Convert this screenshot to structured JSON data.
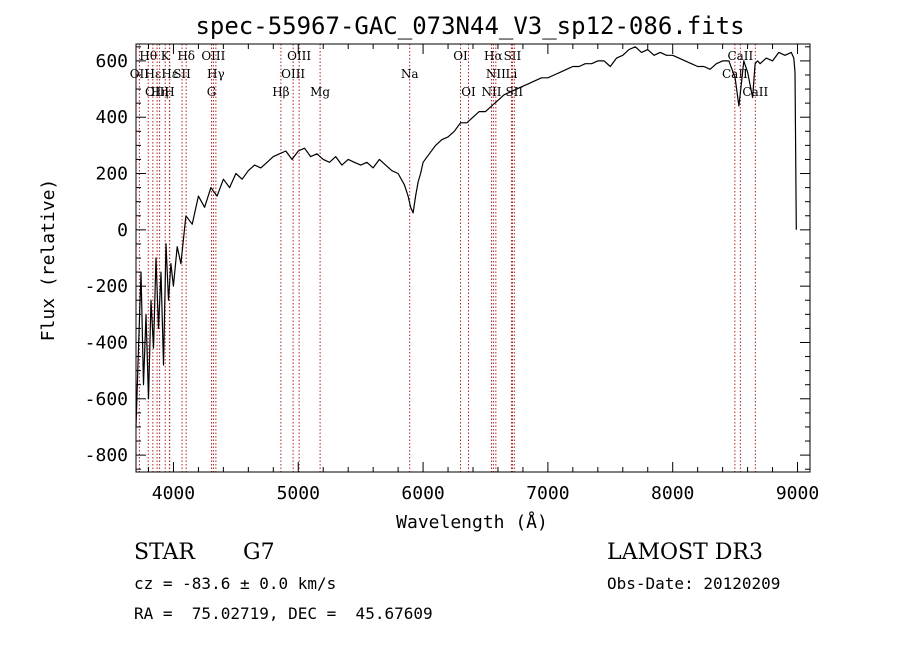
{
  "chart_data": {
    "type": "line",
    "title": "spec-55967-GAC_073N44_V3_sp12-086.fits",
    "xlabel": "Wavelength (Å)",
    "ylabel": "Flux (relative)",
    "xlim": [
      3700,
      9100
    ],
    "ylim": [
      -860,
      660
    ],
    "xticks": [
      4000,
      5000,
      6000,
      7000,
      8000,
      9000
    ],
    "yticks": [
      -800,
      -600,
      -400,
      -200,
      0,
      200,
      400,
      600
    ],
    "series": [
      {
        "name": "flux",
        "x": [
          3700,
          3720,
          3740,
          3760,
          3780,
          3800,
          3820,
          3840,
          3860,
          3880,
          3900,
          3920,
          3940,
          3960,
          3980,
          4000,
          4030,
          4060,
          4100,
          4150,
          4200,
          4250,
          4300,
          4350,
          4400,
          4450,
          4500,
          4550,
          4600,
          4650,
          4700,
          4750,
          4800,
          4850,
          4900,
          4950,
          5000,
          5050,
          5100,
          5150,
          5200,
          5250,
          5300,
          5350,
          5400,
          5450,
          5500,
          5550,
          5600,
          5650,
          5700,
          5750,
          5800,
          5850,
          5880,
          5900,
          5920,
          5940,
          5960,
          5980,
          6000,
          6050,
          6100,
          6150,
          6200,
          6250,
          6300,
          6350,
          6400,
          6450,
          6500,
          6550,
          6600,
          6650,
          6700,
          6750,
          6800,
          6850,
          6900,
          6950,
          7000,
          7050,
          7100,
          7150,
          7200,
          7250,
          7300,
          7350,
          7400,
          7450,
          7500,
          7550,
          7600,
          7650,
          7700,
          7750,
          7800,
          7850,
          7900,
          7950,
          8000,
          8050,
          8100,
          8150,
          8200,
          8250,
          8300,
          8350,
          8400,
          8450,
          8500,
          8530,
          8550,
          8570,
          8600,
          8640,
          8660,
          8680,
          8700,
          8750,
          8800,
          8850,
          8900,
          8950,
          8970,
          8980,
          8990
        ],
        "y": [
          -700,
          -420,
          -150,
          -550,
          -300,
          -600,
          -250,
          -420,
          -100,
          -350,
          -150,
          -480,
          -50,
          -250,
          -120,
          -200,
          -60,
          -120,
          50,
          20,
          120,
          80,
          150,
          120,
          180,
          150,
          200,
          180,
          210,
          230,
          220,
          240,
          260,
          270,
          280,
          250,
          280,
          290,
          260,
          270,
          250,
          240,
          260,
          230,
          250,
          240,
          230,
          240,
          220,
          250,
          230,
          210,
          200,
          160,
          120,
          80,
          60,
          120,
          170,
          200,
          240,
          270,
          300,
          320,
          330,
          350,
          380,
          380,
          400,
          420,
          420,
          440,
          460,
          480,
          490,
          500,
          510,
          520,
          530,
          540,
          540,
          550,
          560,
          570,
          580,
          580,
          590,
          590,
          600,
          600,
          580,
          610,
          620,
          640,
          650,
          630,
          640,
          620,
          630,
          620,
          620,
          610,
          600,
          590,
          580,
          580,
          570,
          590,
          600,
          600,
          540,
          440,
          520,
          600,
          560,
          470,
          590,
          600,
          590,
          610,
          600,
          630,
          620,
          630,
          610,
          560,
          0
        ]
      }
    ],
    "line_markers": [
      {
        "label": "Hθ",
        "wavelength": 3798,
        "row": 1
      },
      {
        "label": "OII",
        "wavelength": 3727,
        "row": 2
      },
      {
        "label": "Hε",
        "wavelength": 3835,
        "row": 2
      },
      {
        "label": "OIII",
        "wavelength": 3869,
        "row": 3
      },
      {
        "label": "Hη",
        "wavelength": 3889,
        "row": 3
      },
      {
        "label": "K",
        "wavelength": 3934,
        "row": 1
      },
      {
        "label": "H",
        "wavelength": 3968,
        "row": 3
      },
      {
        "label": "Hε",
        "wavelength": 3970,
        "row": 2
      },
      {
        "label": "SII",
        "wavelength": 4069,
        "row": 2
      },
      {
        "label": "Hδ",
        "wavelength": 4102,
        "row": 1
      },
      {
        "label": "OIII",
        "wavelength": 4320,
        "row": 1
      },
      {
        "label": "Hγ",
        "wavelength": 4340,
        "row": 2
      },
      {
        "label": "G",
        "wavelength": 4305,
        "row": 3
      },
      {
        "label": "Hβ",
        "wavelength": 4861,
        "row": 3
      },
      {
        "label": "OIII",
        "wavelength": 4959,
        "row": 2
      },
      {
        "label": "OIII",
        "wavelength": 5007,
        "row": 1
      },
      {
        "label": "Mg",
        "wavelength": 5175,
        "row": 3
      },
      {
        "label": "Na",
        "wavelength": 5893,
        "row": 2
      },
      {
        "label": "OI",
        "wavelength": 6300,
        "row": 1
      },
      {
        "label": "OI",
        "wavelength": 6364,
        "row": 3
      },
      {
        "label": "NII",
        "wavelength": 6548,
        "row": 3
      },
      {
        "label": "Hα",
        "wavelength": 6563,
        "row": 1
      },
      {
        "label": "NII",
        "wavelength": 6583,
        "row": 2
      },
      {
        "label": "SII",
        "wavelength": 6716,
        "row": 1
      },
      {
        "label": "Li",
        "wavelength": 6708,
        "row": 2
      },
      {
        "label": "SII",
        "wavelength": 6731,
        "row": 3
      },
      {
        "label": "CaII",
        "wavelength": 8498,
        "row": 2
      },
      {
        "label": "CaII",
        "wavelength": 8542,
        "row": 1
      },
      {
        "label": "CaII",
        "wavelength": 8662,
        "row": 3
      }
    ],
    "marker_color": "#b22222"
  },
  "info": {
    "class": "STAR",
    "subclass": "G7",
    "survey": "LAMOST DR3",
    "cz": "cz = -83.6 ± 0.0 km/s",
    "obs_date": "Obs-Date: 20120209",
    "radec": "RA =  75.02719, DEC =  45.67609"
  }
}
